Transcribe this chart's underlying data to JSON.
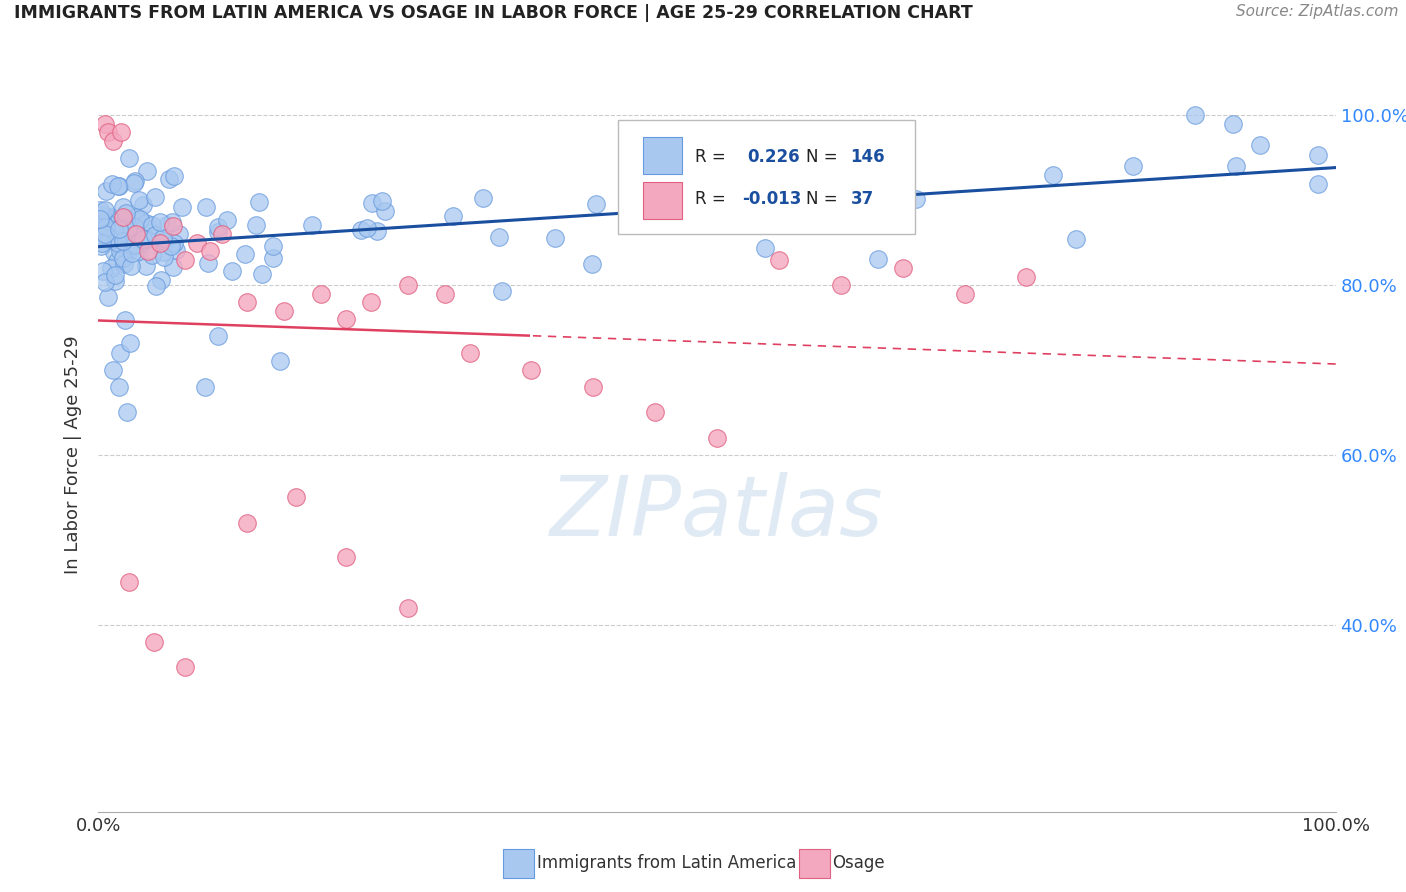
{
  "title": "IMMIGRANTS FROM LATIN AMERICA VS OSAGE IN LABOR FORCE | AGE 25-29 CORRELATION CHART",
  "source": "Source: ZipAtlas.com",
  "ylabel": "In Labor Force | Age 25-29",
  "legend_blue_label": "Immigrants from Latin America",
  "legend_pink_label": "Osage",
  "blue_color": "#A8C8F0",
  "blue_edge_color": "#6699DD",
  "pink_color": "#F4A8C0",
  "pink_edge_color": "#E06080",
  "blue_line_color": "#1A4FA0",
  "pink_line_color": "#E04060",
  "grid_color": "#CCCCCC",
  "right_axis_color": "#3388FF",
  "r_val_blue": "0.226",
  "n_val_blue": "146",
  "r_val_pink": "-0.013",
  "n_val_pink": "37",
  "watermark_text": "ZIPatlas",
  "background_color": "#FFFFFF",
  "ylim_low": 0.18,
  "ylim_high": 1.02,
  "y_ticks": [
    0.4,
    0.6,
    0.8,
    1.0
  ]
}
